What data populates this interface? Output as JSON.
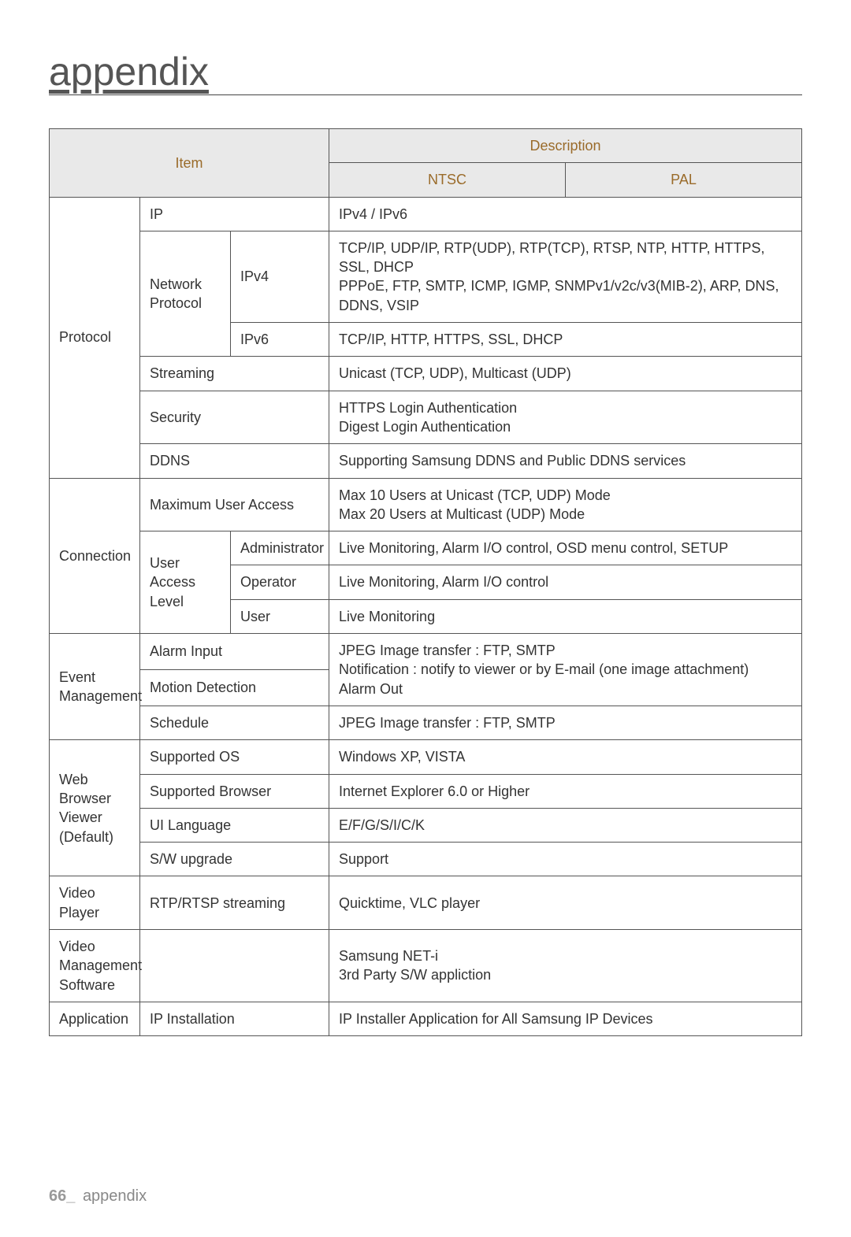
{
  "page": {
    "title": "appendix",
    "footer_page": "66_",
    "footer_text": "appendix"
  },
  "header": {
    "item": "Item",
    "description": "Description",
    "ntsc": "NTSC",
    "pal": "PAL"
  },
  "rows": {
    "protocol": {
      "label": "Protocol",
      "ip": {
        "label": "IP",
        "value": "IPv4 / IPv6"
      },
      "network_protocol": {
        "label": "Network Protocol",
        "ipv4": {
          "label": "IPv4",
          "value": "TCP/IP, UDP/IP, RTP(UDP), RTP(TCP), RTSP, NTP, HTTP, HTTPS, SSL, DHCP\nPPPoE, FTP, SMTP, ICMP, IGMP, SNMPv1/v2c/v3(MIB-2), ARP, DNS, DDNS, VSIP"
        },
        "ipv6": {
          "label": "IPv6",
          "value": "TCP/IP, HTTP, HTTPS, SSL, DHCP"
        }
      },
      "streaming": {
        "label": "Streaming",
        "value": "Unicast (TCP, UDP), Multicast (UDP)"
      },
      "security": {
        "label": "Security",
        "value": "HTTPS Login Authentication\nDigest Login Authentication"
      },
      "ddns": {
        "label": "DDNS",
        "value": "Supporting Samsung DDNS and Public DDNS services"
      }
    },
    "connection": {
      "label": "Connection",
      "max_user": {
        "label": "Maximum User Access",
        "value": "Max 10 Users at Unicast (TCP, UDP) Mode\nMax 20 Users at Multicast (UDP) Mode"
      },
      "user_access_level": {
        "label": "User Access Level",
        "admin": {
          "label": "Administrator",
          "value": "Live Monitoring, Alarm I/O control, OSD menu control, SETUP"
        },
        "operator": {
          "label": "Operator",
          "value": "Live Monitoring, Alarm I/O control"
        },
        "user": {
          "label": "User",
          "value": "Live Monitoring"
        }
      }
    },
    "event": {
      "label": "Event Management",
      "alarm_input": {
        "label": "Alarm Input"
      },
      "motion_detection": {
        "label": "Motion Detection"
      },
      "alarm_motion_value": "JPEG Image transfer : FTP, SMTP\nNotification : notify to viewer or by E-mail (one image attachment)\nAlarm Out",
      "schedule": {
        "label": "Schedule",
        "value": "JPEG Image transfer : FTP, SMTP"
      }
    },
    "webviewer": {
      "label": "Web Browser Viewer (Default)",
      "supported_os": {
        "label": "Supported OS",
        "value": "Windows XP, VISTA"
      },
      "supported_browser": {
        "label": "Supported Browser",
        "value": "Internet Explorer 6.0 or Higher"
      },
      "ui_language": {
        "label": "UI Language",
        "value": "E/F/G/S/I/C/K"
      },
      "sw_upgrade": {
        "label": "S/W upgrade",
        "value": "Support"
      }
    },
    "video_player": {
      "label": "Video Player",
      "sub": "RTP/RTSP streaming",
      "value": "Quicktime, VLC player"
    },
    "vms": {
      "label": "Video Management Software",
      "sub": "",
      "value": "Samsung NET-i\n3rd Party S/W appliction"
    },
    "application": {
      "label": "Application",
      "sub": "IP Installation",
      "value": "IP Installer Application for All Samsung IP Devices"
    }
  }
}
